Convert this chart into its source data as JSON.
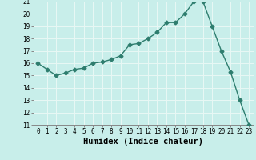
{
  "xlabel": "Humidex (Indice chaleur)",
  "x": [
    0,
    1,
    2,
    3,
    4,
    5,
    6,
    7,
    8,
    9,
    10,
    11,
    12,
    13,
    14,
    15,
    16,
    17,
    18,
    19,
    20,
    21,
    22,
    23
  ],
  "y": [
    16.0,
    15.5,
    15.0,
    15.2,
    15.5,
    15.6,
    16.0,
    16.1,
    16.3,
    16.6,
    17.5,
    17.6,
    18.0,
    18.5,
    19.3,
    19.3,
    20.0,
    21.0,
    21.0,
    19.0,
    17.0,
    15.3,
    13.0,
    11.0
  ],
  "line_color": "#2e7d6e",
  "marker": "D",
  "marker_size": 2.5,
  "bg_color": "#c8eeea",
  "grid_color": "#e8f8f5",
  "ylim": [
    11,
    21
  ],
  "yticks": [
    11,
    12,
    13,
    14,
    15,
    16,
    17,
    18,
    19,
    20,
    21
  ],
  "xticks": [
    0,
    1,
    2,
    3,
    4,
    5,
    6,
    7,
    8,
    9,
    10,
    11,
    12,
    13,
    14,
    15,
    16,
    17,
    18,
    19,
    20,
    21,
    22,
    23
  ],
  "tick_fontsize": 5.5,
  "xlabel_fontsize": 7.5
}
